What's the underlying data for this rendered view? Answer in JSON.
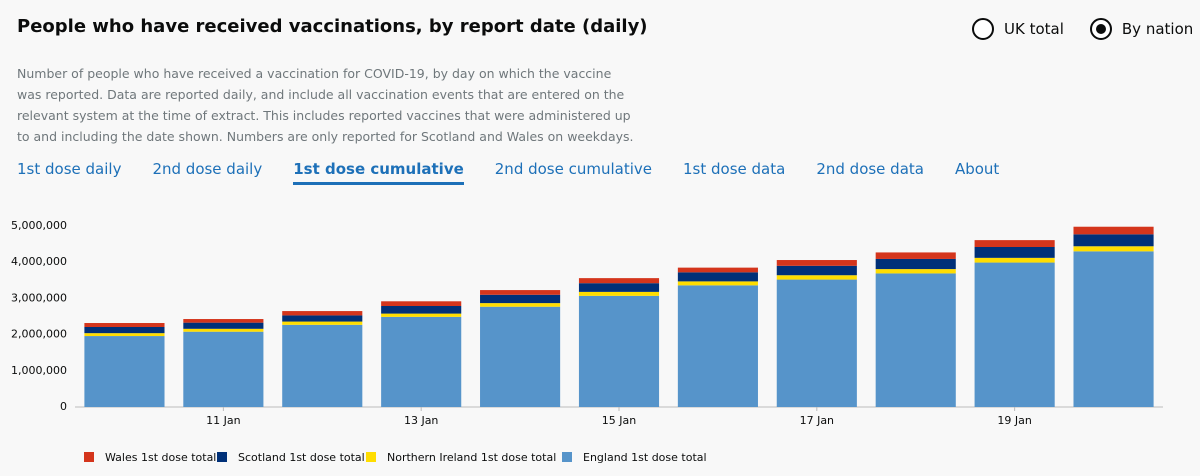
{
  "chart_data": {
    "type": "stacked-bar",
    "title": "People who have received vaccinations, by report date (daily)",
    "subtitle": "Number of people who have received a vaccination for COVID-19, by day on which the vaccine was reported. Data are reported daily, and include all vaccination events that are entered on the relevant system at the time of extract. This includes reported vaccines that were administered up to and including the date shown. Numbers are only reported for Scotland and Wales on weekdays.",
    "categories": [
      null,
      "11 Jan",
      null,
      "13 Jan",
      null,
      "15 Jan",
      null,
      "17 Jan",
      null,
      "19 Jan",
      null
    ],
    "series": [
      {
        "name": "Wales 1st dose total",
        "color": "#d4351c",
        "values": [
          110000,
          100000,
          120000,
          130000,
          130000,
          140000,
          130000,
          160000,
          180000,
          190000,
          210000
        ]
      },
      {
        "name": "Scotland 1st dose total",
        "color": "#003078",
        "values": [
          170000,
          170000,
          170000,
          210000,
          230000,
          240000,
          250000,
          260000,
          280000,
          300000,
          330000
        ]
      },
      {
        "name": "Northern Ireland 1st dose total",
        "color": "#ffdd00",
        "values": [
          80000,
          80000,
          90000,
          90000,
          100000,
          110000,
          110000,
          120000,
          120000,
          130000,
          140000
        ]
      },
      {
        "name": "England 1st dose total",
        "color": "#5694ca",
        "values": [
          1960000,
          2080000,
          2270000,
          2490000,
          2770000,
          3070000,
          3360000,
          3520000,
          3690000,
          3990000,
          4300000
        ]
      }
    ],
    "ylim": [
      0,
      5000000
    ],
    "yticks": [
      0,
      {
        "value": 1000000,
        "label": "1,000,000"
      },
      {
        "value": 2000000,
        "label": "2,000,000"
      },
      {
        "value": 3000000,
        "label": "3,000,000"
      },
      {
        "value": 4000000,
        "label": "4,000,000"
      },
      {
        "value": 5000000,
        "label": "5,000,000"
      }
    ],
    "grid": false
  },
  "options": {
    "items": [
      "UK total",
      "By nation"
    ],
    "selected": 1
  },
  "tabs": {
    "items": [
      "1st dose daily",
      "2nd dose daily",
      "1st dose cumulative",
      "2nd dose cumulative",
      "1st dose data",
      "2nd dose data",
      "About"
    ],
    "active": 2
  }
}
